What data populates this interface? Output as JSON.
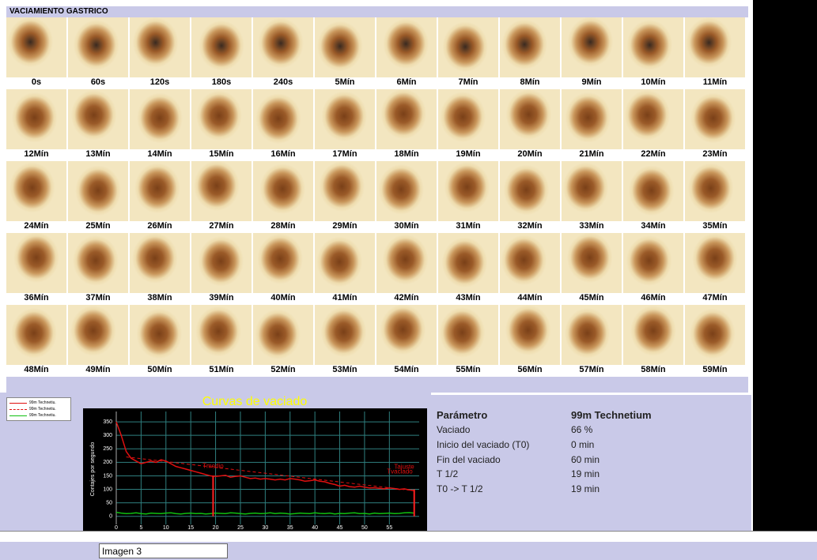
{
  "header": {
    "title": "VACIAMIENTO GASTRICO"
  },
  "frames": {
    "labels": [
      "0s",
      "60s",
      "120s",
      "180s",
      "240s",
      "5Mín",
      "6Mín",
      "7Mín",
      "8Mín",
      "9Mín",
      "10Mín",
      "11Mín",
      "12Mín",
      "13Mín",
      "14Mín",
      "15Mín",
      "16Mín",
      "17Mín",
      "18Mín",
      "19Mín",
      "20Mín",
      "21Mín",
      "22Mín",
      "23Mín",
      "24Mín",
      "25Mín",
      "26Mín",
      "27Mín",
      "28Mín",
      "29Mín",
      "30Mín",
      "31Mín",
      "32Mín",
      "33Mín",
      "34Mín",
      "35Mín",
      "36Mín",
      "37Mín",
      "38Mín",
      "39Mín",
      "40Mín",
      "41Mín",
      "42Mín",
      "43Mín",
      "44Mín",
      "45Mín",
      "46Mín",
      "47Mín",
      "48Mín",
      "49Mín",
      "50Mín",
      "51Mín",
      "52Mín",
      "53Mín",
      "54Mín",
      "55Mín",
      "56Mín",
      "57Mín",
      "58Mín",
      "59Mín"
    ]
  },
  "chart_data": {
    "type": "line",
    "title": "Curvas de vaciado",
    "y_label": "Contajes por segundo",
    "x": [
      0,
      1,
      2,
      3,
      4,
      5,
      6,
      7,
      8,
      9,
      10,
      11,
      12,
      13,
      14,
      15,
      16,
      17,
      18,
      19,
      20,
      21,
      22,
      23,
      24,
      25,
      26,
      27,
      28,
      29,
      30,
      31,
      32,
      33,
      34,
      35,
      36,
      37,
      38,
      39,
      40,
      41,
      42,
      43,
      44,
      45,
      46,
      47,
      48,
      49,
      50,
      51,
      52,
      53,
      54,
      55,
      56,
      57,
      58,
      59,
      60
    ],
    "series": [
      {
        "name": "99m Technetiu.",
        "color": "#e01010",
        "linestyle": "solid",
        "values": [
          350,
          300,
          240,
          215,
          205,
          195,
          200,
          205,
          200,
          210,
          205,
          195,
          185,
          180,
          175,
          170,
          165,
          160,
          155,
          150,
          148,
          150,
          152,
          145,
          148,
          150,
          145,
          140,
          142,
          138,
          140,
          138,
          135,
          138,
          135,
          140,
          138,
          135,
          130,
          132,
          135,
          130,
          128,
          122,
          118,
          112,
          115,
          110,
          108,
          112,
          108,
          105,
          106,
          104,
          102,
          105,
          103,
          100,
          102,
          98,
          95
        ]
      },
      {
        "name": "99m Technetiu.",
        "color": "#e01010",
        "linestyle": "dashed",
        "label": "Tajuste",
        "x": [
          2,
          60
        ],
        "values": [
          220,
          95
        ]
      },
      {
        "name": "99m Technetiu.",
        "color": "#10c010",
        "linestyle": "solid",
        "values": [
          15,
          12,
          10,
          11,
          13,
          10,
          9,
          12,
          11,
          10,
          12,
          13,
          10,
          9,
          11,
          12,
          10,
          11,
          9,
          10,
          12,
          11,
          10,
          13,
          12,
          10,
          9,
          11,
          12,
          10,
          11,
          13,
          10,
          12,
          11,
          9,
          10,
          12,
          11,
          10,
          13,
          11,
          10,
          12,
          9,
          11,
          10,
          12,
          13,
          10,
          11,
          9,
          12,
          10,
          11,
          12,
          10,
          11,
          13,
          14,
          12
        ]
      }
    ],
    "vlines": [
      {
        "label": "Tmedio",
        "x": 19.5,
        "y": 150
      },
      {
        "label": "Tvaciado",
        "x": 60,
        "y": 100
      }
    ],
    "xlim": [
      0,
      61
    ],
    "ylim": [
      -30,
      400
    ],
    "xticks": [
      0,
      5,
      10,
      15,
      20,
      25,
      30,
      35,
      40,
      45,
      50,
      55
    ],
    "yticks": [
      0,
      50,
      100,
      150,
      200,
      250,
      300,
      350
    ],
    "grid": true
  },
  "parameters": {
    "header": [
      "Parámetro",
      "99m Technetium"
    ],
    "rows": [
      [
        "Vaciado",
        "66 %"
      ],
      [
        "Inicio del vaciado (T0)",
        "0 min"
      ],
      [
        "Fin del vaciado",
        "60 min"
      ],
      [
        "T 1/2",
        "19 min"
      ],
      [
        "T0 -> T 1/2",
        "19 min"
      ]
    ]
  },
  "footer": {
    "input": "Imagen 3"
  }
}
